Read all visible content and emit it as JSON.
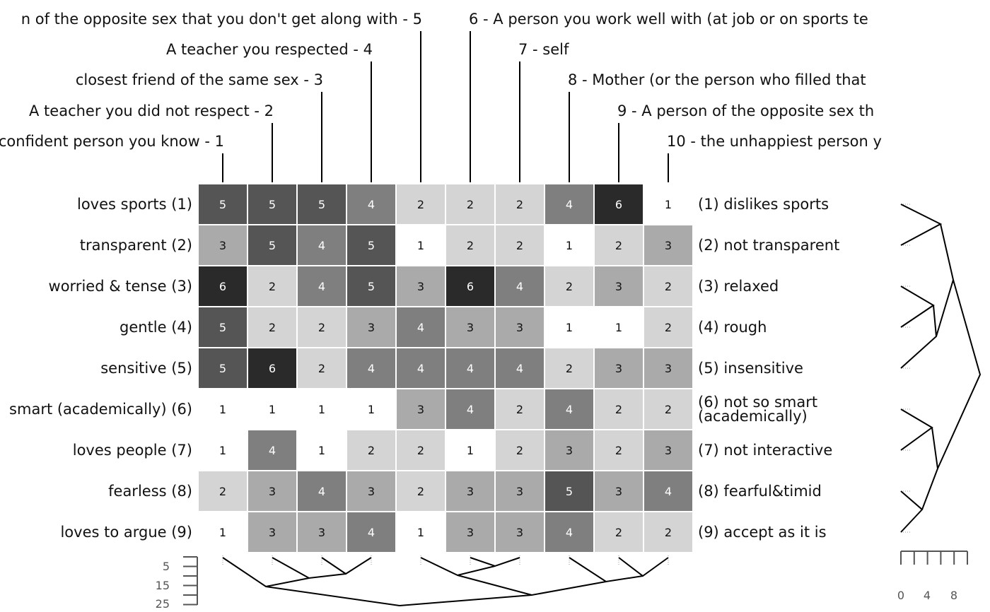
{
  "chart_data": {
    "type": "heatmap",
    "title": "",
    "columns": [
      "confident person you know - 1",
      "A teacher you did not respect - 2",
      "closest friend of the same sex - 3",
      "A teacher you respected - 4",
      "n of the opposite sex that you don't get along with - 5",
      "6 - A person you work well with (at job or on sports te",
      "7 - self",
      "8 - Mother (or the person who filled that",
      "9 - A person of the opposite sex th",
      "10 - the unhappiest person y"
    ],
    "rows_left": [
      "loves sports (1)",
      "transparent (2)",
      "worried & tense (3)",
      "gentle (4)",
      "sensitive (5)",
      "smart (academically) (6)",
      "loves people (7)",
      "fearless (8)",
      "loves to argue (9)"
    ],
    "rows_right": [
      "(1) dislikes sports",
      "(2) not transparent",
      "(3) relaxed",
      "(4) rough",
      "(5) insensitive",
      "(6) not so smart\n(academically)",
      "(7) not interactive",
      "(8) fearful&timid",
      "(9) accept as it is"
    ],
    "values": [
      [
        5,
        5,
        5,
        4,
        2,
        2,
        2,
        4,
        6,
        1
      ],
      [
        3,
        5,
        4,
        5,
        1,
        2,
        2,
        1,
        2,
        3
      ],
      [
        6,
        2,
        4,
        5,
        3,
        6,
        4,
        2,
        3,
        2
      ],
      [
        5,
        2,
        2,
        3,
        4,
        3,
        3,
        1,
        1,
        2
      ],
      [
        5,
        6,
        2,
        4,
        4,
        4,
        4,
        2,
        3,
        3
      ],
      [
        1,
        1,
        1,
        1,
        3,
        4,
        2,
        4,
        2,
        2
      ],
      [
        1,
        4,
        1,
        2,
        2,
        1,
        2,
        3,
        2,
        3
      ],
      [
        2,
        3,
        4,
        3,
        2,
        3,
        3,
        5,
        3,
        4
      ],
      [
        1,
        3,
        3,
        4,
        1,
        3,
        3,
        4,
        2,
        2
      ]
    ],
    "scale": [
      1,
      6
    ],
    "column_dendrogram_scale": {
      "ticks": [
        5,
        15,
        25
      ]
    },
    "row_dendrogram_scale": {
      "ticks": [
        0,
        4,
        8
      ]
    },
    "colors": {
      "1": "#ffffff",
      "2": "#d4d4d4",
      "3": "#aaaaaa",
      "4": "#7f7f7f",
      "5": "#555555",
      "6": "#2a2a2a"
    }
  }
}
